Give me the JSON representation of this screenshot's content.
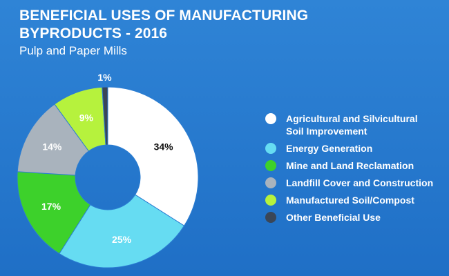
{
  "title_line1": "BENEFICIAL USES OF MANUFACTURING",
  "title_line2": "BYPRODUCTS - 2016",
  "subtitle": "Pulp and Paper Mills",
  "chart_data": {
    "type": "pie",
    "donut": true,
    "legend_position": "right",
    "slices": [
      {
        "label": "Agricultural and Silvicultural Soil Improvement",
        "legend_lines": [
          "Agricultural and Silvicultural",
          "Soil Improvement"
        ],
        "value": 34,
        "value_label": "34%",
        "color": "#ffffff",
        "label_color": "#111111"
      },
      {
        "label": "Energy Generation",
        "legend_lines": [
          "Energy Generation"
        ],
        "value": 25,
        "value_label": "25%",
        "color": "#66dcf2",
        "label_color": "#ffffff"
      },
      {
        "label": "Mine and Land Reclamation",
        "legend_lines": [
          "Mine and Land Reclamation"
        ],
        "value": 17,
        "value_label": "17%",
        "color": "#3dd12b",
        "label_color": "#ffffff"
      },
      {
        "label": "Landfill Cover and Construction",
        "legend_lines": [
          "Landfill Cover and Construction"
        ],
        "value": 14,
        "value_label": "14%",
        "color": "#a9b3bd",
        "label_color": "#ffffff"
      },
      {
        "label": "Manufactured Soil/Compost",
        "legend_lines": [
          "Manufactured Soil/Compost"
        ],
        "value": 9,
        "value_label": "9%",
        "color": "#b6f23d",
        "label_color": "#ffffff"
      },
      {
        "label": "Other Beneficial Use",
        "legend_lines": [
          "Other Beneficial Use"
        ],
        "value": 1,
        "value_label": "1%",
        "color": "#3a4657",
        "label_color": "#ffffff"
      }
    ]
  }
}
